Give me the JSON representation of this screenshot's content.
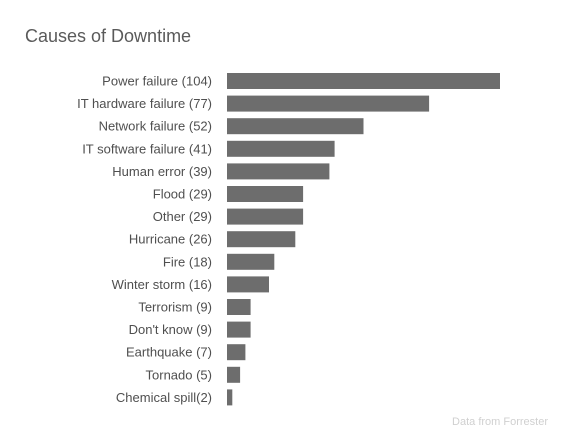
{
  "chart_data": {
    "type": "bar",
    "orientation": "horizontal",
    "title": "Causes of Downtime",
    "xlabel": "",
    "ylabel": "",
    "categories": [
      "Power failure",
      "IT hardware failure",
      "Network failure",
      "IT software failure",
      "Human error",
      "Flood",
      "Other",
      "Hurricane",
      "Fire",
      "Winter storm",
      "Terrorism",
      "Don't know",
      "Earthquake",
      "Tornado",
      "Chemical spill"
    ],
    "values": [
      104,
      77,
      52,
      41,
      39,
      29,
      29,
      26,
      18,
      16,
      9,
      9,
      7,
      5,
      2
    ],
    "category_labels": [
      "Power failure (104)",
      "IT hardware failure (77)",
      "Network failure (52)",
      "IT software failure (41)",
      "Human error (39)",
      "Flood (29)",
      "Other (29)",
      "Hurricane (26)",
      "Fire (18)",
      "Winter storm (16)",
      "Terrorism (9)",
      "Don't know (9)",
      "Earthquake (7)",
      "Tornado (5)",
      "Chemical spill(2)"
    ],
    "xlim": [
      0,
      104
    ],
    "grid": false,
    "legend": "none",
    "bar_color": "#6d6d6d",
    "source_note": "Data from Forrester"
  }
}
